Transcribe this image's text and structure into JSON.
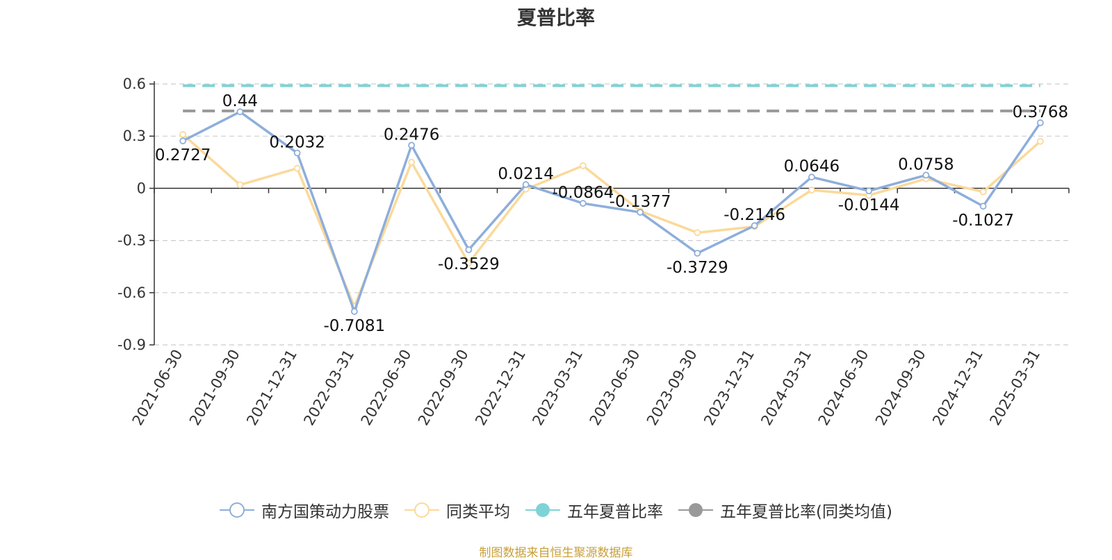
{
  "chart_data": {
    "type": "line",
    "title": "夏普比率",
    "categories": [
      "2021-06-30",
      "2021-09-30",
      "2021-12-31",
      "2022-03-31",
      "2022-06-30",
      "2022-09-30",
      "2022-12-31",
      "2023-03-31",
      "2023-06-30",
      "2023-09-30",
      "2023-12-31",
      "2024-03-31",
      "2024-06-30",
      "2024-09-30",
      "2024-12-31",
      "2025-03-31"
    ],
    "ylim": [
      -0.9,
      0.6
    ],
    "yticks": [
      "0.6",
      "0.3",
      "0",
      "-0.3",
      "-0.6",
      "-0.9"
    ],
    "ytick_values": [
      0.6,
      0.3,
      0,
      -0.3,
      -0.6,
      -0.9
    ],
    "grid": true,
    "legend_position": "bottom",
    "series": [
      {
        "name": "南方国策动力股票",
        "color": "#8eaedb",
        "marker": "circle",
        "show_labels": true,
        "values": [
          0.2727,
          0.44,
          0.2032,
          -0.7081,
          0.2476,
          -0.3529,
          0.0214,
          -0.0864,
          -0.1377,
          -0.3729,
          -0.2146,
          0.0646,
          -0.0144,
          0.0758,
          -0.1027,
          0.3768
        ],
        "labels": [
          "0.2727",
          "0.44",
          "0.2032",
          "-0.7081",
          "0.2476",
          "-0.3529",
          "0.0214",
          "-0.0864",
          "-0.1377",
          "-0.3729",
          "-0.2146",
          "0.0646",
          "-0.0144",
          "0.0758",
          "-0.1027",
          "0.3768"
        ]
      },
      {
        "name": "同类平均",
        "color": "#fbd99a",
        "marker": "circle",
        "show_labels": false,
        "values": [
          0.31,
          0.02,
          0.115,
          -0.68,
          0.15,
          -0.43,
          -0.005,
          0.13,
          -0.13,
          -0.255,
          -0.22,
          -0.01,
          -0.04,
          0.055,
          -0.02,
          0.27
        ]
      },
      {
        "name": "五年夏普比率",
        "color": "#7ed3d6",
        "style": "dashed",
        "constant": 0.59
      },
      {
        "name": "五年夏普比率(同类均值)",
        "color": "#999999",
        "style": "dashed",
        "constant": 0.445
      }
    ]
  },
  "source_note": "制图数据来自恒生聚源数据库"
}
